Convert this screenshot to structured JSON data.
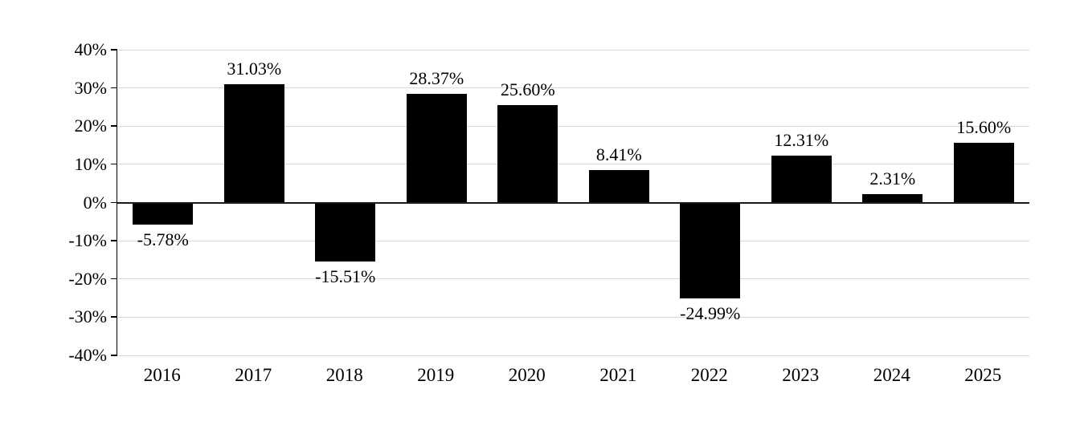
{
  "chart_data": {
    "type": "bar",
    "title": "",
    "xlabel": "",
    "ylabel": "",
    "categories": [
      "2016",
      "2017",
      "2018",
      "2019",
      "2020",
      "2021",
      "2022",
      "2023",
      "2024",
      "2025"
    ],
    "values": [
      -5.78,
      31.03,
      -15.51,
      28.37,
      25.6,
      8.41,
      -24.99,
      12.31,
      2.31,
      15.6
    ],
    "data_labels": [
      "-5.78%",
      "31.03%",
      "-15.51%",
      "28.37%",
      "25.60%",
      "8.41%",
      "-24.99%",
      "12.31%",
      "2.31%",
      "15.60%"
    ],
    "ylim": [
      -40,
      40
    ],
    "y_ticks": [
      {
        "value": 40,
        "label": "40%"
      },
      {
        "value": 30,
        "label": "30%"
      },
      {
        "value": 20,
        "label": "20%"
      },
      {
        "value": 10,
        "label": "10%"
      },
      {
        "value": 0,
        "label": "0%"
      },
      {
        "value": -10,
        "label": "-10%"
      },
      {
        "value": -20,
        "label": "-20%"
      },
      {
        "value": -30,
        "label": "-30%"
      },
      {
        "value": -40,
        "label": "-40%"
      }
    ],
    "bar_color": "#000000",
    "gridline_color": "#d9d9d9",
    "zero_line_color": "#1a1a1a",
    "grid": true,
    "legend_position": "none"
  }
}
